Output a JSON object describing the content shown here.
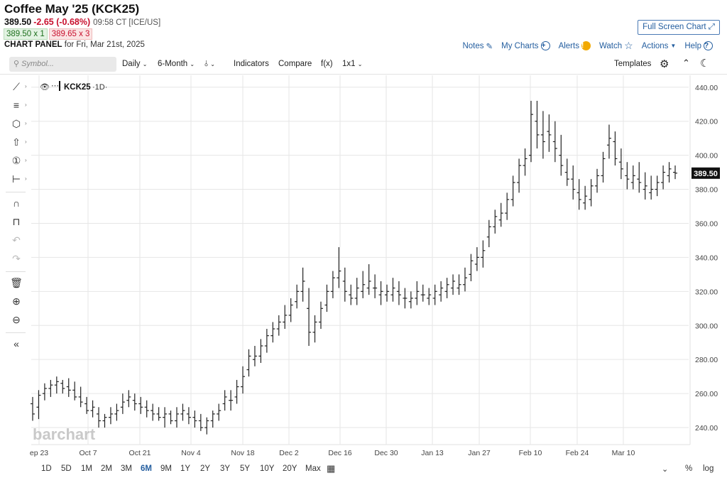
{
  "header": {
    "title": "Coffee May '25 (KCK25)",
    "last": "389.50",
    "change": "-2.65 (-0.68%)",
    "time": "09:58 CT [ICE/US]",
    "bid": "389.50 x 1",
    "ask": "389.65 x 3",
    "panel_label": "CHART PANEL",
    "panel_date": "for Fri, Mar 21st, 2025",
    "full_screen": "Full Screen Chart",
    "links": {
      "notes": "Notes",
      "my_charts": "My Charts",
      "alerts": "Alerts",
      "watch": "Watch",
      "actions": "Actions",
      "help": "Help"
    }
  },
  "toolbar": {
    "symbol_placeholder": "Symbol...",
    "daily": "Daily",
    "range": "6-Month",
    "indicators": "Indicators",
    "compare": "Compare",
    "fx": "f(x)",
    "layout": "1x1",
    "templates": "Templates"
  },
  "left_tools": [
    "trend-line-icon",
    "fib-icon",
    "shape-icon",
    "arrow-icon",
    "number-icon",
    "measure-icon",
    "magnet-icon",
    "lock-icon",
    "undo-icon",
    "redo-icon",
    "trash-icon",
    "zoom-in-icon",
    "zoom-out-icon",
    "collapse-icon"
  ],
  "legend": {
    "symbol": "KCK25",
    "interval": "·1D·"
  },
  "watermark": "barchart",
  "price_tag": "389.50",
  "bottom": {
    "periods": [
      "1D",
      "5D",
      "1M",
      "2M",
      "3M",
      "6M",
      "9M",
      "1Y",
      "2Y",
      "3Y",
      "5Y",
      "10Y",
      "20Y",
      "Max"
    ],
    "active": "6M",
    "pct": "%",
    "log": "log"
  },
  "chart_data": {
    "type": "ohlc",
    "y_ticks": [
      "240.00",
      "260.00",
      "280.00",
      "300.00",
      "320.00",
      "340.00",
      "360.00",
      "380.00",
      "400.00",
      "420.00",
      "440.00"
    ],
    "ylim": [
      230,
      447
    ],
    "x_labels": [
      "ep 23",
      "Oct 7",
      "Oct 21",
      "Nov 4",
      "Nov 18",
      "Dec 2",
      "Dec 16",
      "Dec 30",
      "Jan 13",
      "Jan 27",
      "Feb 10",
      "Feb 24",
      "Mar 10"
    ],
    "grid": true,
    "bars": [
      [
        254,
        258,
        244,
        248
      ],
      [
        252,
        262,
        245,
        259
      ],
      [
        260,
        266,
        256,
        263
      ],
      [
        263,
        268,
        258,
        265
      ],
      [
        265,
        270,
        260,
        267
      ],
      [
        266,
        268,
        260,
        263
      ],
      [
        264,
        269,
        258,
        262
      ],
      [
        262,
        267,
        256,
        258
      ],
      [
        258,
        264,
        252,
        255
      ],
      [
        254,
        258,
        248,
        250
      ],
      [
        250,
        256,
        246,
        252
      ],
      [
        248,
        252,
        240,
        244
      ],
      [
        244,
        248,
        240,
        246
      ],
      [
        246,
        252,
        242,
        248
      ],
      [
        248,
        254,
        244,
        250
      ],
      [
        252,
        260,
        248,
        255
      ],
      [
        256,
        262,
        252,
        258
      ],
      [
        256,
        260,
        250,
        254
      ],
      [
        254,
        258,
        248,
        252
      ],
      [
        252,
        256,
        246,
        250
      ],
      [
        250,
        254,
        244,
        248
      ],
      [
        248,
        252,
        244,
        246
      ],
      [
        246,
        252,
        240,
        248
      ],
      [
        248,
        250,
        242,
        244
      ],
      [
        244,
        252,
        240,
        248
      ],
      [
        248,
        254,
        244,
        250
      ],
      [
        248,
        252,
        242,
        246
      ],
      [
        246,
        250,
        240,
        244
      ],
      [
        244,
        248,
        238,
        240
      ],
      [
        240,
        246,
        236,
        244
      ],
      [
        244,
        250,
        240,
        248
      ],
      [
        248,
        254,
        244,
        250
      ],
      [
        254,
        262,
        250,
        258
      ],
      [
        256,
        262,
        250,
        256
      ],
      [
        258,
        268,
        254,
        264
      ],
      [
        264,
        276,
        260,
        270
      ],
      [
        274,
        286,
        270,
        282
      ],
      [
        280,
        288,
        276,
        282
      ],
      [
        282,
        292,
        278,
        288
      ],
      [
        288,
        298,
        284,
        294
      ],
      [
        294,
        302,
        290,
        298
      ],
      [
        298,
        306,
        294,
        302
      ],
      [
        302,
        312,
        298,
        306
      ],
      [
        306,
        316,
        302,
        312
      ],
      [
        314,
        324,
        310,
        320
      ],
      [
        320,
        334,
        314,
        326
      ],
      [
        310,
        322,
        288,
        296
      ],
      [
        296,
        306,
        290,
        302
      ],
      [
        302,
        314,
        298,
        310
      ],
      [
        312,
        324,
        308,
        320
      ],
      [
        320,
        332,
        316,
        328
      ],
      [
        328,
        346,
        322,
        332
      ],
      [
        326,
        334,
        314,
        320
      ],
      [
        318,
        324,
        312,
        316
      ],
      [
        316,
        328,
        312,
        322
      ],
      [
        320,
        332,
        316,
        324
      ],
      [
        322,
        336,
        318,
        326
      ],
      [
        322,
        330,
        316,
        322
      ],
      [
        318,
        326,
        312,
        320
      ],
      [
        318,
        324,
        314,
        320
      ],
      [
        318,
        328,
        314,
        322
      ],
      [
        320,
        326,
        312,
        318
      ],
      [
        316,
        322,
        310,
        316
      ],
      [
        314,
        320,
        310,
        316
      ],
      [
        316,
        326,
        312,
        320
      ],
      [
        318,
        324,
        314,
        318
      ],
      [
        316,
        322,
        312,
        318
      ],
      [
        316,
        324,
        312,
        320
      ],
      [
        318,
        326,
        314,
        322
      ],
      [
        320,
        328,
        316,
        324
      ],
      [
        322,
        330,
        318,
        326
      ],
      [
        322,
        330,
        318,
        324
      ],
      [
        324,
        334,
        320,
        328
      ],
      [
        330,
        342,
        326,
        338
      ],
      [
        336,
        346,
        332,
        340
      ],
      [
        340,
        350,
        334,
        344
      ],
      [
        352,
        362,
        346,
        358
      ],
      [
        358,
        368,
        354,
        364
      ],
      [
        362,
        372,
        358,
        366
      ],
      [
        366,
        378,
        362,
        374
      ],
      [
        374,
        388,
        370,
        384
      ],
      [
        384,
        398,
        378,
        394
      ],
      [
        394,
        404,
        388,
        398
      ],
      [
        400,
        432,
        396,
        424
      ],
      [
        420,
        432,
        404,
        412
      ],
      [
        412,
        426,
        398,
        408
      ],
      [
        414,
        424,
        402,
        412
      ],
      [
        408,
        420,
        396,
        404
      ],
      [
        400,
        412,
        388,
        394
      ],
      [
        390,
        398,
        382,
        386
      ],
      [
        386,
        394,
        374,
        380
      ],
      [
        378,
        386,
        368,
        374
      ],
      [
        372,
        382,
        368,
        376
      ],
      [
        374,
        386,
        370,
        382
      ],
      [
        382,
        392,
        378,
        388
      ],
      [
        388,
        402,
        384,
        398
      ],
      [
        406,
        418,
        398,
        410
      ],
      [
        408,
        414,
        394,
        398
      ],
      [
        396,
        404,
        386,
        392
      ],
      [
        388,
        396,
        380,
        386
      ],
      [
        384,
        394,
        380,
        388
      ],
      [
        386,
        396,
        378,
        384
      ],
      [
        380,
        390,
        374,
        382
      ],
      [
        378,
        388,
        374,
        380
      ],
      [
        380,
        388,
        376,
        384
      ],
      [
        384,
        394,
        380,
        390
      ],
      [
        388,
        396,
        384,
        392
      ],
      [
        390,
        394,
        386,
        389.5
      ]
    ]
  }
}
